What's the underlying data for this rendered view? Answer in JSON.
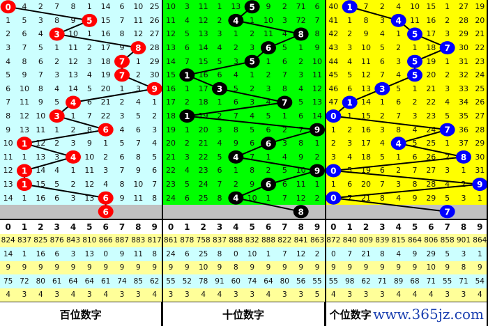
{
  "sections": [
    {
      "label": "百位数字",
      "bg": "#ccffff",
      "ball_color": "#ff0000",
      "hits": [
        0,
        5,
        3,
        8,
        7,
        7,
        9,
        4,
        3,
        6,
        1,
        4,
        1,
        1,
        6
      ],
      "prediction": 6,
      "rows": [
        [
          "",
          4,
          2,
          7,
          8,
          1,
          14,
          6,
          10,
          25
        ],
        [
          1,
          5,
          3,
          8,
          9,
          "",
          15,
          7,
          11,
          26
        ],
        [
          2,
          6,
          4,
          "",
          10,
          1,
          16,
          8,
          12,
          27
        ],
        [
          3,
          7,
          5,
          1,
          11,
          2,
          17,
          9,
          "",
          28
        ],
        [
          4,
          8,
          6,
          2,
          12,
          3,
          18,
          "",
          1,
          29
        ],
        [
          5,
          9,
          7,
          3,
          13,
          4,
          19,
          "",
          2,
          30
        ],
        [
          6,
          10,
          8,
          4,
          14,
          5,
          20,
          1,
          3,
          ""
        ],
        [
          7,
          11,
          9,
          5,
          "",
          6,
          21,
          2,
          4,
          1
        ],
        [
          8,
          12,
          10,
          "",
          1,
          7,
          22,
          3,
          5,
          2
        ],
        [
          9,
          13,
          11,
          1,
          2,
          8,
          "",
          4,
          6,
          3
        ],
        [
          10,
          "",
          12,
          2,
          3,
          9,
          1,
          5,
          7,
          4
        ],
        [
          11,
          1,
          13,
          3,
          "",
          10,
          2,
          6,
          8,
          5
        ],
        [
          12,
          "",
          14,
          4,
          1,
          11,
          3,
          7,
          9,
          6
        ],
        [
          13,
          "",
          15,
          5,
          2,
          12,
          4,
          8,
          10,
          7
        ],
        [
          14,
          1,
          16,
          6,
          3,
          13,
          "",
          9,
          11,
          8
        ]
      ],
      "stats": [
        [
          824,
          837,
          825,
          876,
          843,
          810,
          866,
          887,
          883,
          817
        ],
        [
          14,
          1,
          16,
          6,
          3,
          13,
          0,
          9,
          11,
          8
        ],
        [
          9,
          9,
          9,
          9,
          9,
          9,
          9,
          9,
          9,
          9
        ],
        [
          75,
          72,
          80,
          61,
          64,
          64,
          61,
          74,
          85,
          62
        ],
        [
          4,
          3,
          4,
          3,
          4,
          3,
          4,
          3,
          3,
          4
        ]
      ]
    },
    {
      "label": "十位数字",
      "bg": "#00ff00",
      "ball_color": "#000000",
      "hits": [
        5,
        4,
        8,
        6,
        5,
        1,
        3,
        7,
        1,
        9,
        6,
        4,
        9,
        6,
        4
      ],
      "prediction": 8,
      "rows": [
        [
          10,
          3,
          11,
          1,
          13,
          "",
          9,
          2,
          71,
          6
        ],
        [
          11,
          4,
          12,
          2,
          "",
          1,
          10,
          3,
          72,
          7
        ],
        [
          12,
          5,
          13,
          3,
          1,
          2,
          11,
          4,
          "",
          8
        ],
        [
          13,
          6,
          14,
          4,
          2,
          3,
          "",
          5,
          1,
          9
        ],
        [
          14,
          7,
          15,
          5,
          3,
          "",
          1,
          6,
          2,
          10
        ],
        [
          15,
          "",
          16,
          6,
          4,
          1,
          2,
          7,
          3,
          11
        ],
        [
          16,
          1,
          17,
          "",
          5,
          2,
          3,
          8,
          4,
          12
        ],
        [
          17,
          2,
          18,
          1,
          6,
          3,
          4,
          "",
          5,
          13
        ],
        [
          18,
          "",
          19,
          2,
          7,
          4,
          5,
          1,
          6,
          14
        ],
        [
          19,
          1,
          20,
          3,
          8,
          5,
          6,
          2,
          7,
          ""
        ],
        [
          20,
          2,
          21,
          4,
          9,
          6,
          "",
          3,
          8,
          1
        ],
        [
          21,
          3,
          22,
          5,
          "",
          7,
          1,
          4,
          9,
          2
        ],
        [
          22,
          4,
          23,
          6,
          1,
          8,
          2,
          5,
          10,
          ""
        ],
        [
          23,
          5,
          24,
          7,
          2,
          9,
          "",
          6,
          11,
          1
        ],
        [
          24,
          6,
          25,
          8,
          "",
          10,
          1,
          7,
          12,
          2
        ]
      ],
      "stats": [
        [
          861,
          878,
          758,
          837,
          888,
          832,
          888,
          822,
          841,
          863
        ],
        [
          24,
          6,
          25,
          8,
          0,
          10,
          1,
          7,
          12,
          2
        ],
        [
          9,
          9,
          10,
          9,
          8,
          9,
          9,
          9,
          9,
          9
        ],
        [
          55,
          52,
          78,
          91,
          60,
          74,
          64,
          80,
          56,
          55
        ],
        [
          3,
          3,
          4,
          4,
          3,
          3,
          4,
          3,
          3,
          5
        ]
      ]
    },
    {
      "label": "个位数字",
      "bg": "#ffff00",
      "ball_color": "#0000ff",
      "hits": [
        1,
        4,
        5,
        7,
        5,
        5,
        3,
        1,
        0,
        7,
        4,
        8,
        0,
        9,
        0
      ],
      "prediction": 7,
      "rows": [
        [
          40,
          "",
          7,
          2,
          4,
          10,
          15,
          1,
          27,
          19
        ],
        [
          41,
          1,
          8,
          3,
          "",
          11,
          16,
          2,
          28,
          20
        ],
        [
          42,
          2,
          9,
          4,
          1,
          "",
          17,
          3,
          29,
          21
        ],
        [
          43,
          3,
          10,
          5,
          2,
          1,
          18,
          "",
          30,
          22
        ],
        [
          44,
          4,
          11,
          6,
          3,
          "",
          19,
          1,
          31,
          23
        ],
        [
          45,
          5,
          12,
          7,
          4,
          "",
          20,
          2,
          32,
          24
        ],
        [
          46,
          6,
          13,
          "",
          5,
          1,
          21,
          3,
          33,
          25
        ],
        [
          47,
          "",
          14,
          1,
          6,
          2,
          22,
          4,
          34,
          26
        ],
        [
          "",
          1,
          15,
          2,
          7,
          3,
          23,
          5,
          35,
          27
        ],
        [
          1,
          2,
          16,
          3,
          8,
          4,
          24,
          "",
          36,
          28
        ],
        [
          2,
          3,
          17,
          4,
          "",
          5,
          25,
          1,
          37,
          29
        ],
        [
          3,
          4,
          18,
          5,
          1,
          6,
          26,
          2,
          "",
          30
        ],
        [
          "",
          5,
          19,
          6,
          2,
          7,
          27,
          3,
          1,
          31
        ],
        [
          1,
          6,
          20,
          7,
          3,
          8,
          28,
          4,
          2,
          ""
        ],
        [
          "",
          7,
          21,
          8,
          4,
          9,
          29,
          5,
          3,
          1
        ]
      ],
      "stats": [
        [
          872,
          840,
          809,
          839,
          815,
          864,
          806,
          858,
          901,
          864
        ],
        [
          0,
          7,
          21,
          8,
          4,
          9,
          29,
          5,
          3,
          1
        ],
        [
          9,
          9,
          9,
          9,
          9,
          9,
          10,
          9,
          8,
          9
        ],
        [
          55,
          98,
          62,
          71,
          89,
          68,
          71,
          55,
          71,
          54
        ],
        [
          4,
          3,
          3,
          3,
          4,
          4,
          4,
          3,
          3,
          4
        ]
      ]
    }
  ],
  "digits": [
    "0",
    "1",
    "2",
    "3",
    "4",
    "5",
    "6",
    "7",
    "8",
    "9"
  ],
  "colors": {
    "prediction_row": "#c0c0c0",
    "stat_yellow": "#ffff99",
    "stat_cyan": "#ccffff",
    "grid": "#333333"
  },
  "watermark": "www.365jz.com"
}
